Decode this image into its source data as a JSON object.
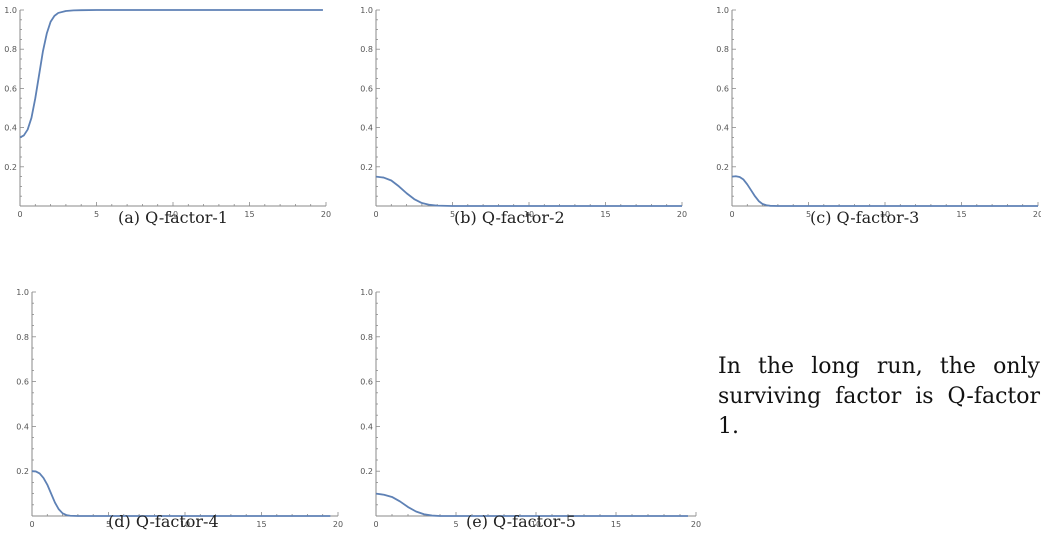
{
  "chart_data": [
    {
      "type": "line",
      "caption": "(a)  Q-factor-1",
      "xlim": [
        0,
        20
      ],
      "ylim": [
        0,
        1.0
      ],
      "x_ticks": [
        0,
        5,
        10,
        15,
        20
      ],
      "x_tick_labels": [
        "0",
        "5",
        "10",
        "15",
        "20"
      ],
      "y_ticks": [
        0.2,
        0.4,
        0.6,
        0.8,
        1.0
      ],
      "y_tick_labels": [
        "0.2",
        "0.4",
        "0.6",
        "0.8",
        "1.0"
      ],
      "grid": false,
      "series": [
        {
          "color": "#5e81b5",
          "x": [
            0,
            0.25,
            0.5,
            0.75,
            1,
            1.25,
            1.5,
            1.75,
            2,
            2.25,
            2.5,
            3,
            3.5,
            4,
            5,
            7,
            10,
            15,
            19.8
          ],
          "y": [
            0.35,
            0.36,
            0.39,
            0.45,
            0.55,
            0.67,
            0.79,
            0.88,
            0.94,
            0.97,
            0.985,
            0.995,
            0.998,
            0.999,
            1.0,
            1.0,
            1.0,
            1.0,
            1.0
          ]
        }
      ]
    },
    {
      "type": "line",
      "caption": "(b)  Q-factor-2",
      "xlim": [
        0,
        20
      ],
      "ylim": [
        0,
        1.0
      ],
      "x_ticks": [
        0,
        5,
        10,
        15,
        20
      ],
      "x_tick_labels": [
        "0",
        "5",
        "10",
        "15",
        "20"
      ],
      "y_ticks": [
        0.2,
        0.4,
        0.6,
        0.8,
        1.0
      ],
      "y_tick_labels": [
        "0.2",
        "0.4",
        "0.6",
        "0.8",
        "1.0"
      ],
      "grid": false,
      "series": [
        {
          "color": "#5e81b5",
          "x": [
            0,
            0.5,
            1,
            1.5,
            2,
            2.5,
            3,
            3.5,
            4,
            5,
            10,
            15,
            20
          ],
          "y": [
            0.15,
            0.145,
            0.13,
            0.1,
            0.065,
            0.035,
            0.015,
            0.006,
            0.002,
            0.0,
            0.0,
            0.0,
            0.0
          ]
        }
      ]
    },
    {
      "type": "line",
      "caption": "(c)  Q-factor-3",
      "xlim": [
        0,
        20
      ],
      "ylim": [
        0,
        1.0
      ],
      "x_ticks": [
        0,
        5,
        10,
        15,
        20
      ],
      "x_tick_labels": [
        "0",
        "5",
        "10",
        "15",
        "20"
      ],
      "y_ticks": [
        0.2,
        0.4,
        0.6,
        0.8,
        1.0
      ],
      "y_tick_labels": [
        "0.2",
        "0.4",
        "0.6",
        "0.8",
        "1.0"
      ],
      "grid": false,
      "series": [
        {
          "color": "#5e81b5",
          "x": [
            0,
            0.25,
            0.5,
            0.75,
            1,
            1.25,
            1.5,
            1.75,
            2,
            2.25,
            2.5,
            3,
            4,
            10,
            15,
            20
          ],
          "y": [
            0.15,
            0.152,
            0.148,
            0.135,
            0.11,
            0.08,
            0.05,
            0.025,
            0.01,
            0.004,
            0.001,
            0.0,
            0.0,
            0.0,
            0.0,
            0.0
          ]
        }
      ]
    },
    {
      "type": "line",
      "caption": "(d)  Q-factor-4",
      "xlim": [
        0,
        20
      ],
      "ylim": [
        0,
        1.0
      ],
      "x_ticks": [
        0,
        5,
        10,
        15,
        20
      ],
      "x_tick_labels": [
        "0",
        "5",
        "10",
        "15",
        "20"
      ],
      "y_ticks": [
        0.2,
        0.4,
        0.6,
        0.8,
        1.0
      ],
      "y_tick_labels": [
        "0.2",
        "0.4",
        "0.6",
        "0.8",
        "1.0"
      ],
      "grid": false,
      "series": [
        {
          "color": "#5e81b5",
          "x": [
            0,
            0.25,
            0.5,
            0.75,
            1,
            1.25,
            1.5,
            1.75,
            2,
            2.25,
            2.5,
            3,
            4,
            10,
            15,
            19.5
          ],
          "y": [
            0.2,
            0.199,
            0.19,
            0.17,
            0.14,
            0.1,
            0.06,
            0.03,
            0.012,
            0.004,
            0.001,
            0.0,
            0.0,
            0.0,
            0.0,
            0.0
          ]
        }
      ]
    },
    {
      "type": "line",
      "caption": "(e)  Q-factor-5",
      "xlim": [
        0,
        20
      ],
      "ylim": [
        0,
        1.0
      ],
      "x_ticks": [
        0,
        5,
        10,
        15,
        20
      ],
      "x_tick_labels": [
        "0",
        "5",
        "10",
        "15",
        "20"
      ],
      "y_ticks": [
        0.2,
        0.4,
        0.6,
        0.8,
        1.0
      ],
      "y_tick_labels": [
        "0.2",
        "0.4",
        "0.6",
        "0.8",
        "1.0"
      ],
      "grid": false,
      "series": [
        {
          "color": "#5e81b5",
          "x": [
            0,
            0.5,
            1,
            1.5,
            2,
            2.5,
            3,
            3.5,
            4,
            10,
            15,
            19.5
          ],
          "y": [
            0.1,
            0.095,
            0.085,
            0.065,
            0.04,
            0.02,
            0.008,
            0.002,
            0.0,
            0.0,
            0.0,
            0.0
          ]
        }
      ]
    }
  ],
  "side_text": "In the long run, the only surviving factor is Q-factor 1."
}
